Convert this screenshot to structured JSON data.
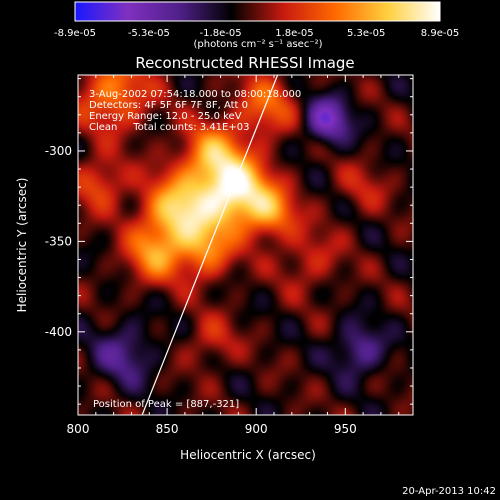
{
  "chart_data": {
    "type": "heatmap",
    "title": "Reconstructed RHESSI Image",
    "xlabel": "Heliocentric X (arcsec)",
    "ylabel": "Heliocentric Y (arcsec)",
    "xlim": [
      800,
      988
    ],
    "ylim": [
      -446,
      -258
    ],
    "x_ticks": [
      800,
      850,
      900,
      950
    ],
    "y_ticks": [
      -300,
      -350,
      -400
    ],
    "colorbar": {
      "min": -8.9e-05,
      "max": 8.9e-05,
      "tick_labels": [
        "-8.9e-05",
        "-5.3e-05",
        "-1.8e-05",
        "1.8e-05",
        "5.3e-05",
        "8.9e-05"
      ],
      "unit_label": "(photons cm⁻² s⁻¹ asec⁻²)",
      "colors": [
        "#1818ff",
        "#8030c0",
        "#50208a",
        "#000000",
        "#c81a10",
        "#ff6a00",
        "#ffd040",
        "#ffffff"
      ]
    },
    "annotations": [
      "3-Aug-2002 07:54:18.000 to 08:00:18.000",
      "Detectors: 4F 5F 6F 7F 8F, Att 0",
      "Energy Range: 12.0 - 25.0 keV",
      "Clean     Total counts: 3.41E+03"
    ],
    "peak_label": "Position of Peak = [887,-321]",
    "peak_position": [
      887,
      -321
    ],
    "limb_line": [
      [
        836,
        -446
      ],
      [
        912,
        -258
      ]
    ],
    "sources": [
      {
        "x": 888,
        "y": -322,
        "amp": 1.0,
        "sigma": 13
      },
      {
        "x": 857,
        "y": -334,
        "amp": 0.85,
        "sigma": 14
      },
      {
        "x": 875,
        "y": -302,
        "amp": 0.6,
        "sigma": 12
      },
      {
        "x": 908,
        "y": -334,
        "amp": 0.55,
        "sigma": 10
      },
      {
        "x": 842,
        "y": -358,
        "amp": 0.5,
        "sigma": 11
      },
      {
        "x": 872,
        "y": -355,
        "amp": 0.5,
        "sigma": 11
      },
      {
        "x": 820,
        "y": -268,
        "amp": 0.55,
        "sigma": 14
      },
      {
        "x": 812,
        "y": -318,
        "amp": 0.4,
        "sigma": 10
      },
      {
        "x": 905,
        "y": -275,
        "amp": 0.45,
        "sigma": 12
      },
      {
        "x": 940,
        "y": -283,
        "amp": -0.6,
        "sigma": 9
      },
      {
        "x": 958,
        "y": -410,
        "amp": -0.4,
        "sigma": 10
      },
      {
        "x": 826,
        "y": -412,
        "amp": -0.35,
        "sigma": 12
      },
      {
        "x": 875,
        "y": -405,
        "amp": 0.25,
        "sigma": 10
      },
      {
        "x": 930,
        "y": -360,
        "amp": 0.25,
        "sigma": 12
      },
      {
        "x": 960,
        "y": -320,
        "amp": 0.2,
        "sigma": 10
      }
    ]
  },
  "timestamp": "20-Apr-2013 10:42"
}
